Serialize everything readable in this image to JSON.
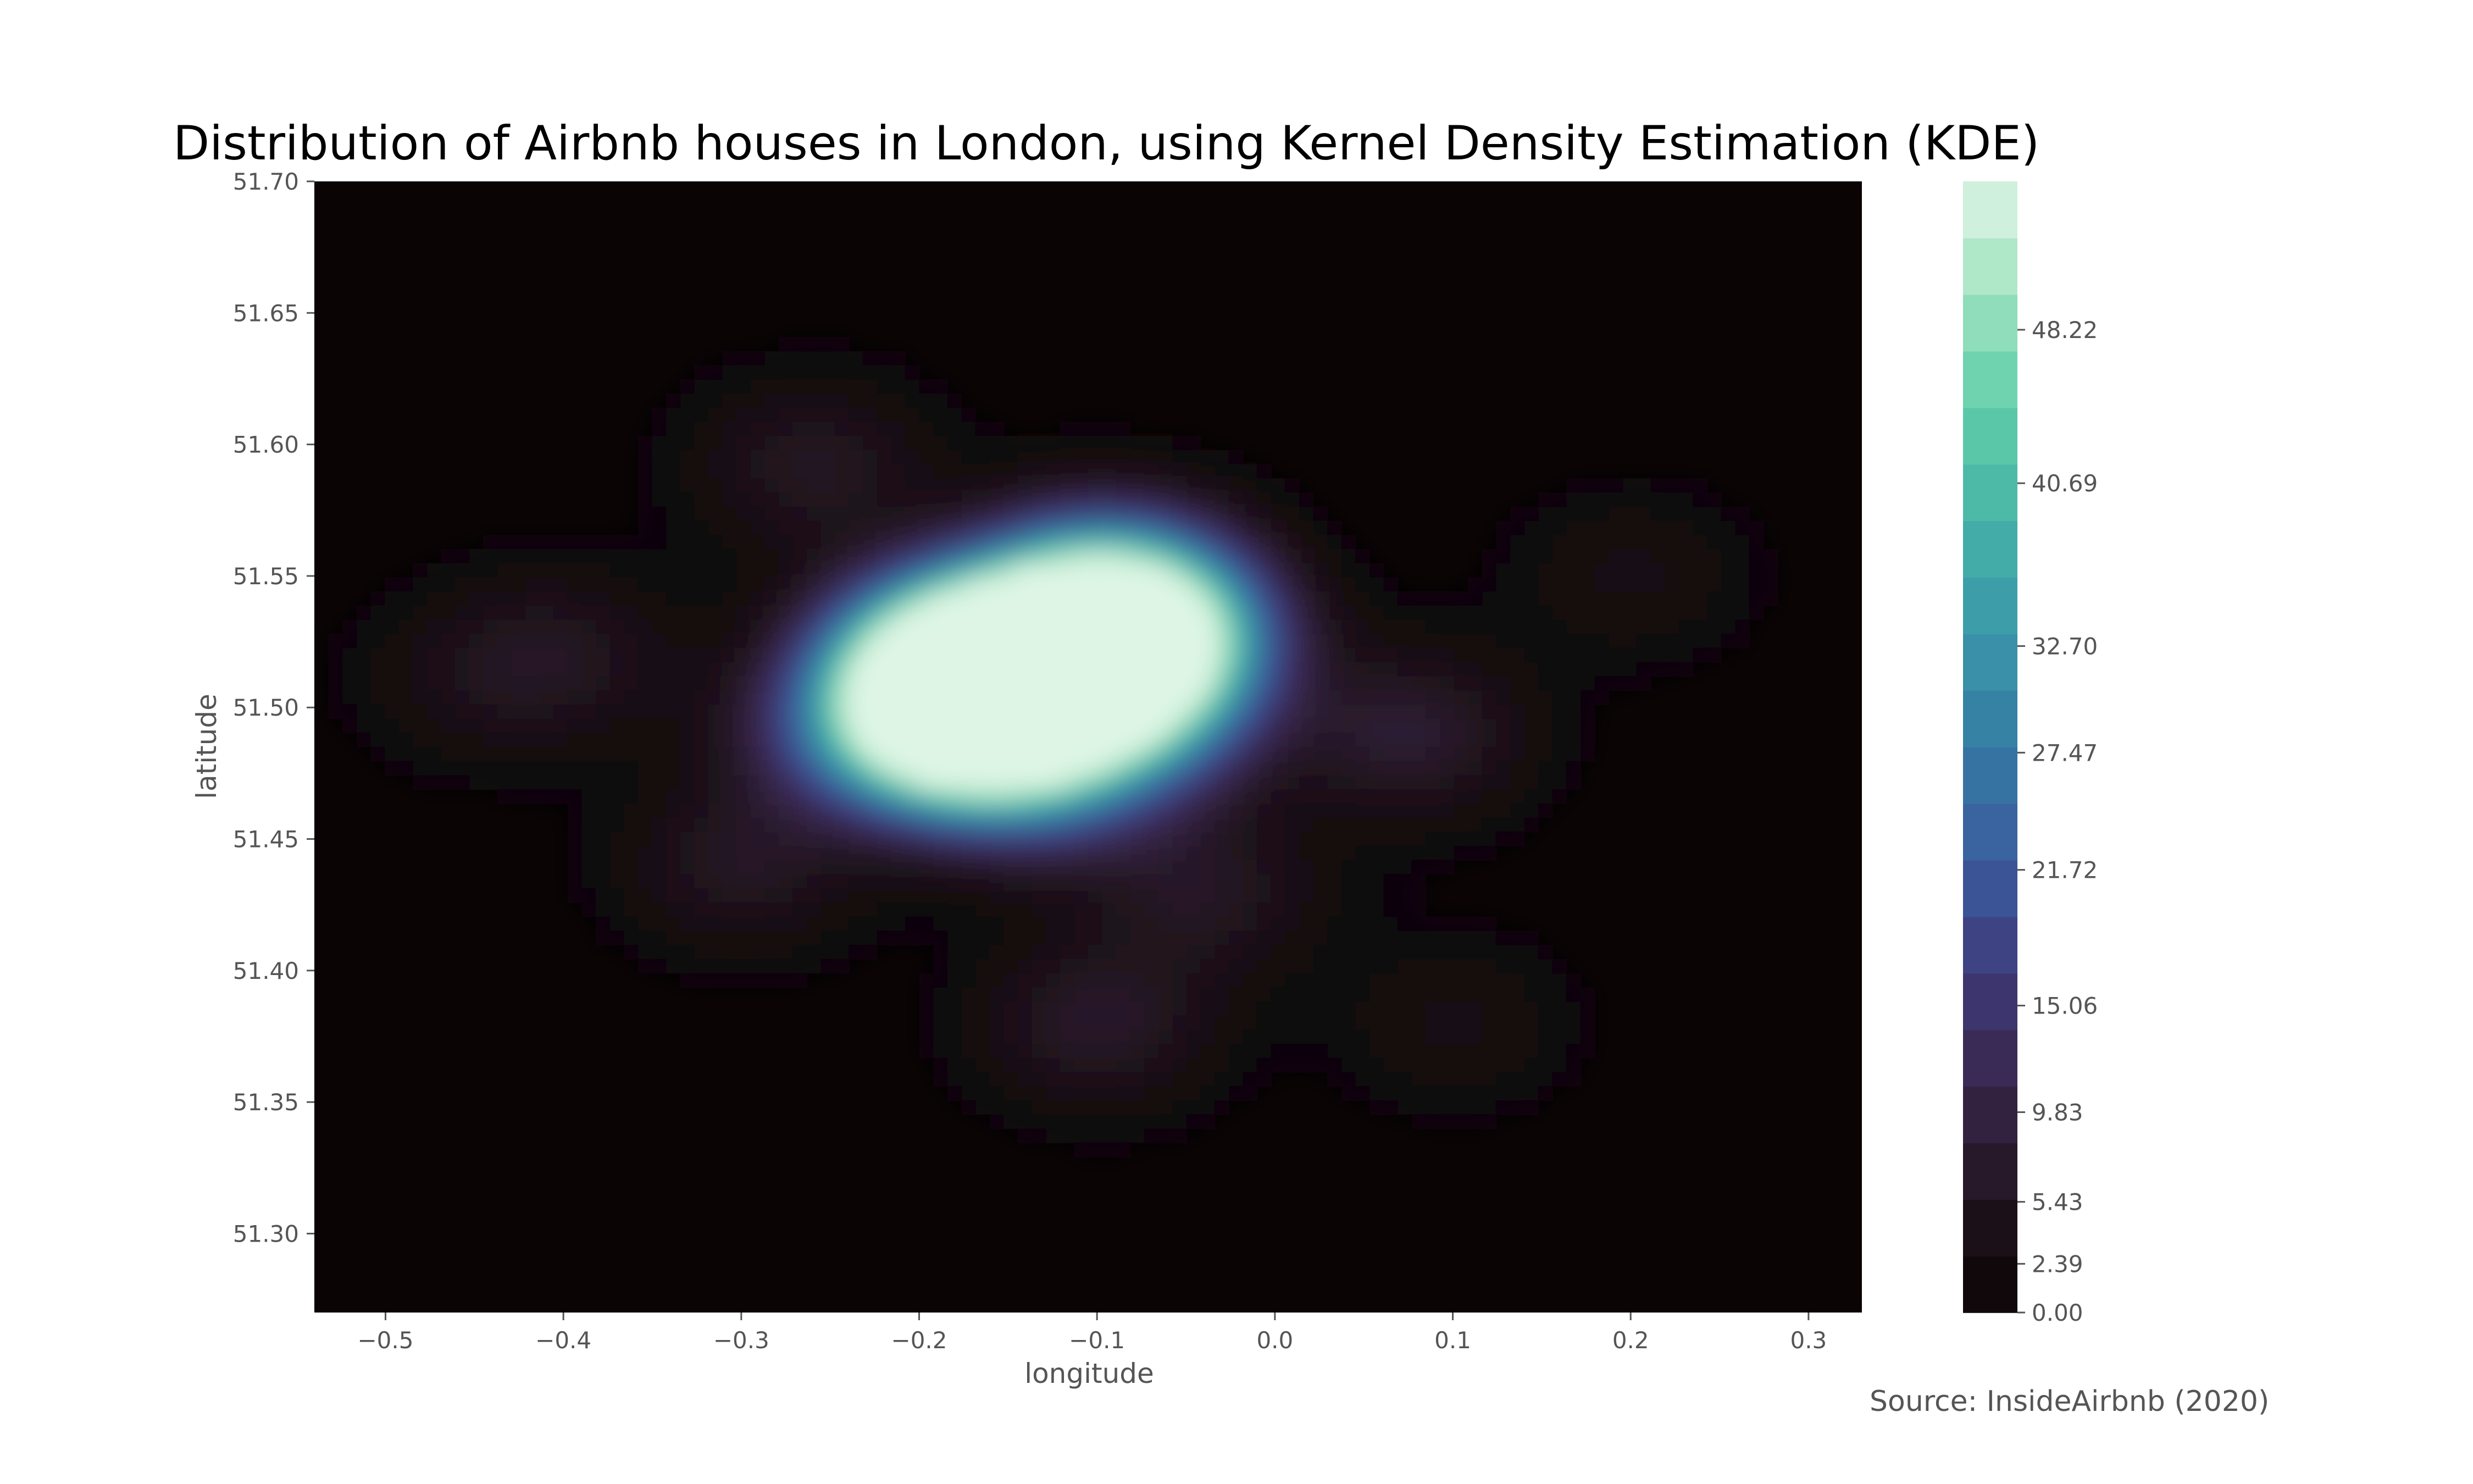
{
  "chart_data": {
    "type": "heatmap",
    "title": "Distribution of Airbnb houses in London, using Kernel Density Estimation (KDE)",
    "xlabel": "longitude",
    "ylabel": "latitude",
    "xlim": [
      -0.54,
      0.33
    ],
    "ylim": [
      51.27,
      51.7
    ],
    "x_ticks": [
      -0.5,
      -0.4,
      -0.3,
      -0.2,
      -0.1,
      0.0,
      0.1,
      0.2,
      0.3
    ],
    "x_tick_labels": [
      "−0.5",
      "−0.4",
      "−0.3",
      "−0.2",
      "−0.1",
      "0.0",
      "0.1",
      "0.2",
      "0.3"
    ],
    "y_ticks": [
      51.3,
      51.35,
      51.4,
      51.45,
      51.5,
      51.55,
      51.6,
      51.65,
      51.7
    ],
    "y_tick_labels": [
      "51.30",
      "51.35",
      "51.40",
      "51.45",
      "51.50",
      "51.55",
      "51.60",
      "51.65",
      "51.70"
    ],
    "colorbar": {
      "ticks": [
        0.0,
        2.39,
        5.43,
        9.83,
        15.06,
        21.72,
        27.47,
        32.7,
        40.69,
        48.22
      ],
      "tick_labels": [
        "0.00",
        "2.39",
        "5.43",
        "9.83",
        "15.06",
        "21.72",
        "27.47",
        "32.70",
        "40.69",
        "48.22"
      ],
      "max": 55.5,
      "levels": 20,
      "colors": [
        "#0b0405",
        "#21141e",
        "#38264a",
        "#3e3a7a",
        "#3a5c9e",
        "#357ba3",
        "#3a97a9",
        "#46b3a8",
        "#60cea9",
        "#9fe2bf",
        "#def5e5"
      ]
    },
    "density_peaks": [
      {
        "lon": -0.073,
        "lat": 51.528,
        "value": 55.0
      },
      {
        "lon": -0.185,
        "lat": 51.517,
        "value": 50.0
      },
      {
        "lon": -0.135,
        "lat": 51.519,
        "value": 46.0
      },
      {
        "lon": -0.19,
        "lat": 51.492,
        "value": 44.0
      },
      {
        "lon": -0.11,
        "lat": 51.51,
        "value": 35.0
      },
      {
        "lon": -0.16,
        "lat": 51.5,
        "value": 30.0
      },
      {
        "lon": -0.1,
        "lat": 51.545,
        "value": 25.0
      },
      {
        "lon": -0.13,
        "lat": 51.475,
        "value": 18.0
      },
      {
        "lon": -0.07,
        "lat": 51.495,
        "value": 14.0
      },
      {
        "lon": -0.25,
        "lat": 51.49,
        "value": 8.0
      },
      {
        "lon": 0.075,
        "lat": 51.49,
        "value": 8.0
      },
      {
        "lon": -0.26,
        "lat": 51.592,
        "value": 6.0
      },
      {
        "lon": -0.1,
        "lat": 51.38,
        "value": 7.0
      },
      {
        "lon": -0.4,
        "lat": 51.52,
        "value": 5.0
      },
      {
        "lon": -0.3,
        "lat": 51.44,
        "value": 6.0
      },
      {
        "lon": -0.04,
        "lat": 51.43,
        "value": 6.0
      },
      {
        "lon": 0.2,
        "lat": 51.55,
        "value": 3.0
      },
      {
        "lon": -0.45,
        "lat": 51.51,
        "value": 3.0
      },
      {
        "lon": 0.1,
        "lat": 51.38,
        "value": 3.0
      }
    ]
  },
  "source": "Source: InsideAirbnb (2020)"
}
